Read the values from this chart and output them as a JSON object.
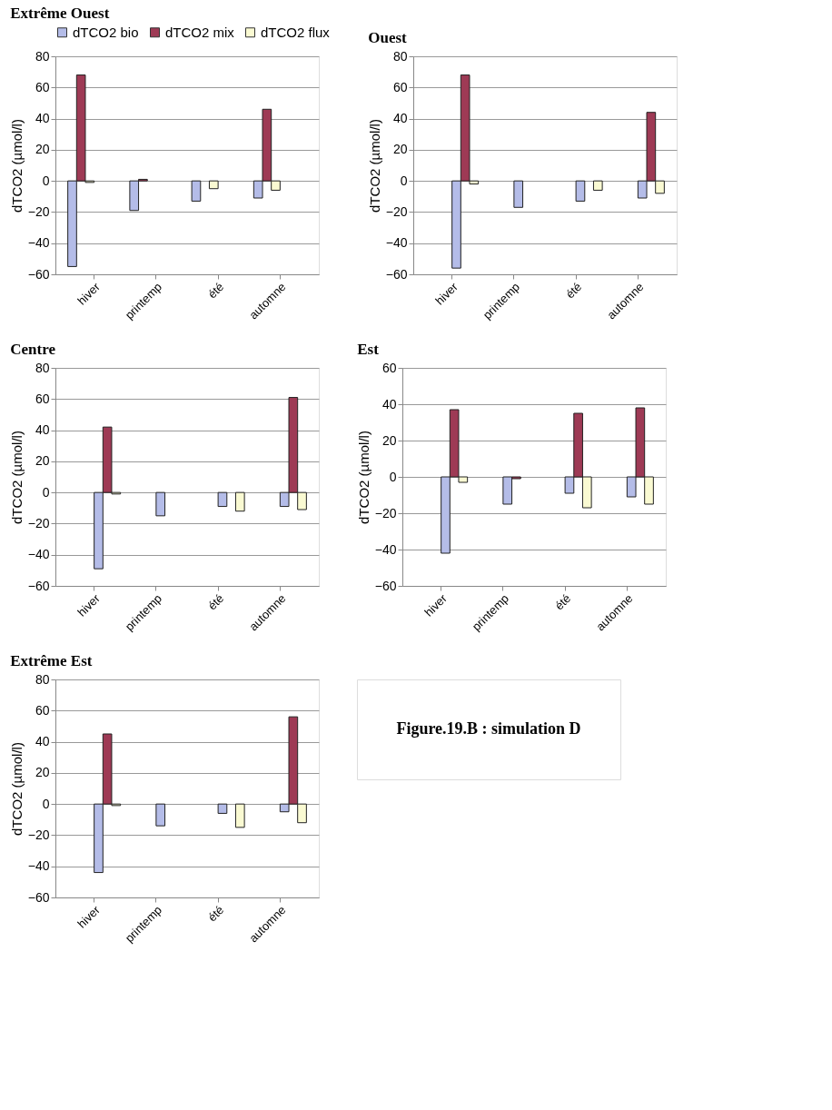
{
  "chart_data": [
    {
      "type": "bar",
      "title": "Extrême Ouest",
      "ylabel": "dTCO2 (µmol/l)",
      "categories": [
        "hiver",
        "printemp",
        "été",
        "automne"
      ],
      "ylim": [
        -60,
        80
      ],
      "yticks": [
        -60,
        -40,
        -20,
        0,
        20,
        40,
        60,
        80
      ],
      "grid": "y",
      "legend": "top",
      "series": [
        {
          "name": "dTCO2 bio",
          "color": "#b4bce8",
          "values": [
            -55,
            -19,
            -13,
            -11
          ]
        },
        {
          "name": "dTCO2 mix",
          "color": "#9e3a55",
          "values": [
            68,
            1,
            null,
            46
          ]
        },
        {
          "name": "dTCO2 flux",
          "color": "#fafad2",
          "values": [
            -1,
            null,
            -5,
            -6
          ]
        }
      ]
    },
    {
      "type": "bar",
      "title": "Ouest",
      "ylabel": "dTCO2 (µmol/l)",
      "categories": [
        "hiver",
        "printemp",
        "été",
        "automne"
      ],
      "ylim": [
        -60,
        80
      ],
      "yticks": [
        -60,
        -40,
        -20,
        0,
        20,
        40,
        60,
        80
      ],
      "grid": "y",
      "series": [
        {
          "color": "#b4bce8",
          "values": [
            -56,
            -17,
            -13,
            -11
          ]
        },
        {
          "color": "#9e3a55",
          "values": [
            68,
            null,
            null,
            44
          ]
        },
        {
          "color": "#fafad2",
          "values": [
            -2,
            null,
            -6,
            -8
          ]
        }
      ]
    },
    {
      "type": "bar",
      "title": "Centre",
      "ylabel": "dTCO2 (µmol/l)",
      "categories": [
        "hiver",
        "printemp",
        "été",
        "automne"
      ],
      "ylim": [
        -60,
        80
      ],
      "yticks": [
        -60,
        -40,
        -20,
        0,
        20,
        40,
        60,
        80
      ],
      "grid": "y",
      "series": [
        {
          "color": "#b4bce8",
          "values": [
            -49,
            -15,
            -9,
            -9
          ]
        },
        {
          "color": "#9e3a55",
          "values": [
            42,
            null,
            null,
            61
          ]
        },
        {
          "color": "#fafad2",
          "values": [
            -1,
            null,
            -12,
            -11
          ]
        }
      ]
    },
    {
      "type": "bar",
      "title": "Est",
      "ylabel": "dTCO2 (µmol/l)",
      "categories": [
        "hiver",
        "printemp",
        "été",
        "automne"
      ],
      "ylim": [
        -60,
        60
      ],
      "yticks": [
        -60,
        -40,
        -20,
        0,
        20,
        40,
        60
      ],
      "grid": "y",
      "series": [
        {
          "color": "#b4bce8",
          "values": [
            -42,
            -15,
            -9,
            -11
          ]
        },
        {
          "color": "#9e3a55",
          "values": [
            37,
            -1,
            35,
            38
          ]
        },
        {
          "color": "#fafad2",
          "values": [
            -3,
            null,
            -17,
            -15
          ]
        }
      ]
    },
    {
      "type": "bar",
      "title": "Extrême Est",
      "ylabel": "dTCO2 (µmol/l)",
      "categories": [
        "hiver",
        "printemp",
        "été",
        "automne"
      ],
      "ylim": [
        -60,
        80
      ],
      "yticks": [
        -60,
        -40,
        -20,
        0,
        20,
        40,
        60,
        80
      ],
      "grid": "y",
      "series": [
        {
          "color": "#b4bce8",
          "values": [
            -44,
            -14,
            -6,
            -5
          ]
        },
        {
          "color": "#9e3a55",
          "values": [
            45,
            null,
            null,
            56
          ]
        },
        {
          "color": "#fafad2",
          "values": [
            -1,
            null,
            -15,
            -12
          ]
        }
      ]
    },
    {
      "type": "other",
      "annotations": [
        "Figure.19.B : simulation D"
      ]
    }
  ]
}
